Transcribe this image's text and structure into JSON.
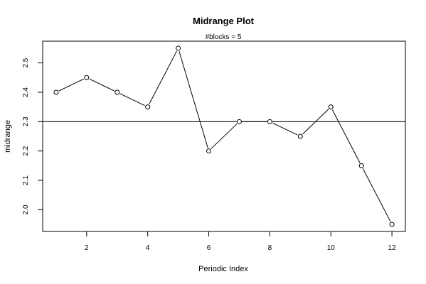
{
  "chart_data": {
    "type": "line",
    "title": "Midrange Plot",
    "subtitle": "#blocks =  5",
    "xlabel": "Periodic Index",
    "ylabel": "midrange",
    "x": [
      1,
      2,
      3,
      4,
      5,
      6,
      7,
      8,
      9,
      10,
      11,
      12
    ],
    "series": [
      {
        "values": [
          2.4,
          2.45,
          2.4,
          2.35,
          2.55,
          2.2,
          2.3,
          2.3,
          2.25,
          2.35,
          2.15,
          1.95
        ]
      }
    ],
    "reference_line": 2.3,
    "xlim": [
      0.56,
      12.44
    ],
    "ylim": [
      1.926,
      2.574
    ],
    "x_ticks": [
      2,
      4,
      6,
      8,
      10,
      12
    ],
    "y_ticks": [
      2.0,
      2.1,
      2.2,
      2.3,
      2.4,
      2.5
    ],
    "x_tick_labels": [
      "2",
      "4",
      "6",
      "8",
      "10",
      "12"
    ],
    "y_tick_labels": [
      "2.0",
      "2.1",
      "2.2",
      "2.3",
      "2.4",
      "2.5"
    ],
    "marker": "open-circle",
    "grid": false,
    "legend": false
  }
}
